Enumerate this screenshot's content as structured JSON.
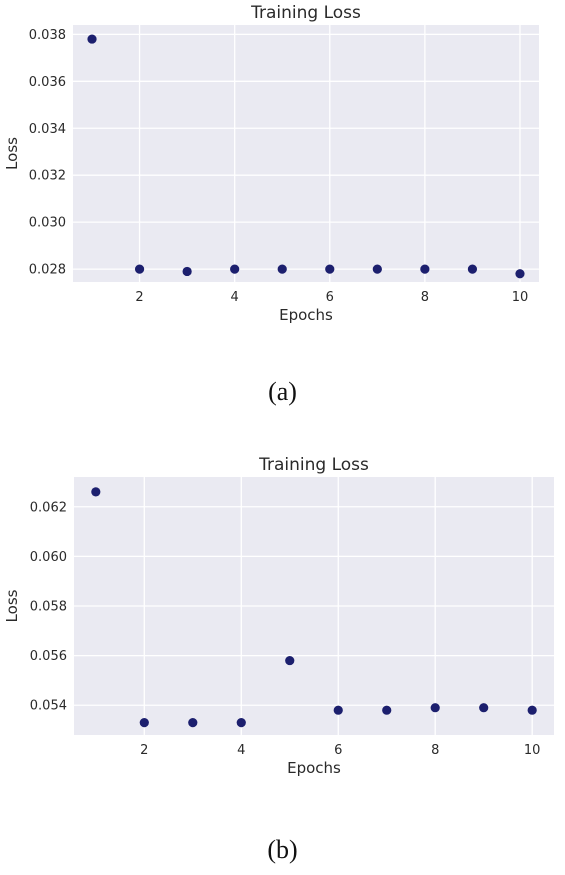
{
  "chart_data": [
    {
      "type": "scatter",
      "title": "Training Loss",
      "xlabel": "Epochs",
      "ylabel": "Loss",
      "x": [
        1,
        2,
        3,
        4,
        5,
        6,
        7,
        8,
        9,
        10
      ],
      "y": [
        0.0378,
        0.028,
        0.0279,
        0.028,
        0.028,
        0.028,
        0.028,
        0.028,
        0.028,
        0.0278
      ],
      "xticks": [
        2,
        4,
        6,
        8,
        10
      ],
      "yticks": [
        0.028,
        0.03,
        0.032,
        0.034,
        0.036,
        0.038
      ],
      "ytick_labels": [
        "0.028",
        "0.030",
        "0.032",
        "0.034",
        "0.036",
        "0.038"
      ],
      "xlim": [
        0.6,
        10.4
      ],
      "ylim": [
        0.02745,
        0.0384
      ],
      "grid": true,
      "point_color": "#1c1f6e",
      "background_color": "#eaeaf2",
      "caption": "(a)"
    },
    {
      "type": "scatter",
      "title": "Training Loss",
      "xlabel": "Epochs",
      "ylabel": "Loss",
      "x": [
        1,
        2,
        3,
        4,
        5,
        6,
        7,
        8,
        9,
        10
      ],
      "y": [
        0.0626,
        0.0533,
        0.0533,
        0.0533,
        0.0558,
        0.0538,
        0.0538,
        0.0539,
        0.0539,
        0.0538
      ],
      "xticks": [
        2,
        4,
        6,
        8,
        10
      ],
      "yticks": [
        0.054,
        0.056,
        0.058,
        0.06,
        0.062
      ],
      "ytick_labels": [
        "0.054",
        "0.056",
        "0.058",
        "0.060",
        "0.062"
      ],
      "xlim": [
        0.55,
        10.45
      ],
      "ylim": [
        0.0528,
        0.0632
      ],
      "grid": true,
      "point_color": "#1c1f6e",
      "background_color": "#eaeaf2",
      "caption": "(b)"
    }
  ]
}
